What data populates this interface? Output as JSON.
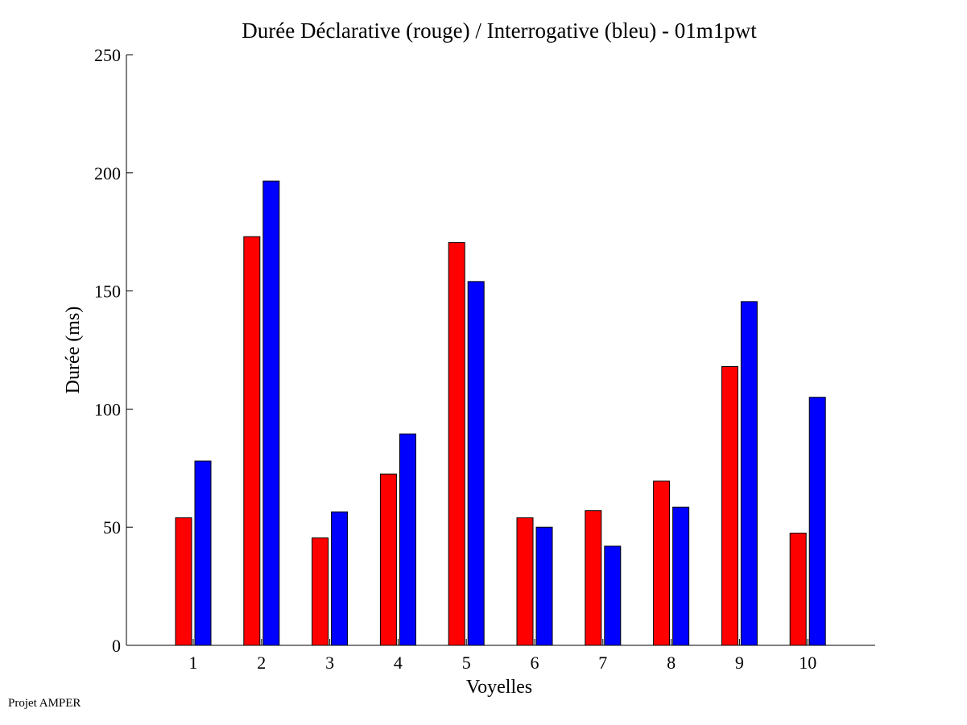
{
  "chart_data": {
    "type": "bar",
    "title": "Durée Déclarative (rouge) / Interrogative (bleu) - 01m1pwt",
    "xlabel": "Voyelles",
    "ylabel": "Durée (ms)",
    "ylim": [
      0,
      250
    ],
    "yticks": [
      0,
      50,
      100,
      150,
      200,
      250
    ],
    "categories": [
      "1",
      "2",
      "3",
      "4",
      "5",
      "6",
      "7",
      "8",
      "9",
      "10"
    ],
    "series": [
      {
        "color": "#ff0000",
        "values": [
          54,
          173,
          45.5,
          72.5,
          170.5,
          54,
          57,
          69.5,
          118,
          47.5
        ]
      },
      {
        "color": "#0000ff",
        "values": [
          78,
          196.5,
          56.5,
          89.5,
          154,
          50,
          42,
          58.5,
          145.5,
          105
        ]
      }
    ],
    "grid": false,
    "legend": "none"
  },
  "footer": {
    "text": "Projet AMPER"
  }
}
